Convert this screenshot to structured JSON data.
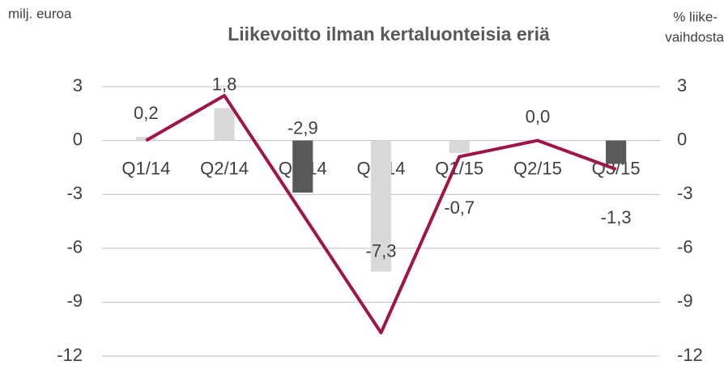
{
  "chart_data": {
    "type": "bar_line",
    "title": "Liikevoitto ilman kertaluonteisia eriä",
    "ylabel": "milj. euroa",
    "y2label": [
      "% liike-",
      "vaihdosta"
    ],
    "categories": [
      "Q1/14",
      "Q2/14",
      "Q3/14",
      "Q4/14",
      "Q1/15",
      "Q2/15",
      "Q3/15"
    ],
    "series": [
      {
        "type": "bar",
        "colors": [
          "#d9d9d9",
          "#d9d9d9",
          "#595959",
          "#d9d9d9",
          "#d9d9d9",
          "#d9d9d9",
          "#595959"
        ],
        "values": [
          0.2,
          1.8,
          -2.9,
          -7.3,
          -0.7,
          0.0,
          -1.3
        ],
        "value_labels": [
          "0,2",
          "1,8",
          "-2,9",
          "-7,3",
          "-0,7",
          "0,0",
          "-1,3"
        ]
      },
      {
        "type": "line",
        "axis": "y2",
        "color": "#a0144a",
        "values": [
          0.0,
          2.5,
          -4.1,
          -10.7,
          -0.9,
          0.0,
          -1.6
        ]
      }
    ],
    "ylim": [
      -12,
      3
    ],
    "yticks": [
      -12,
      -9,
      -6,
      -3,
      0,
      3
    ],
    "y2lim": [
      -12,
      3
    ],
    "y2ticks": [
      -12,
      -9,
      -6,
      -3,
      0,
      3
    ],
    "grid": true
  }
}
